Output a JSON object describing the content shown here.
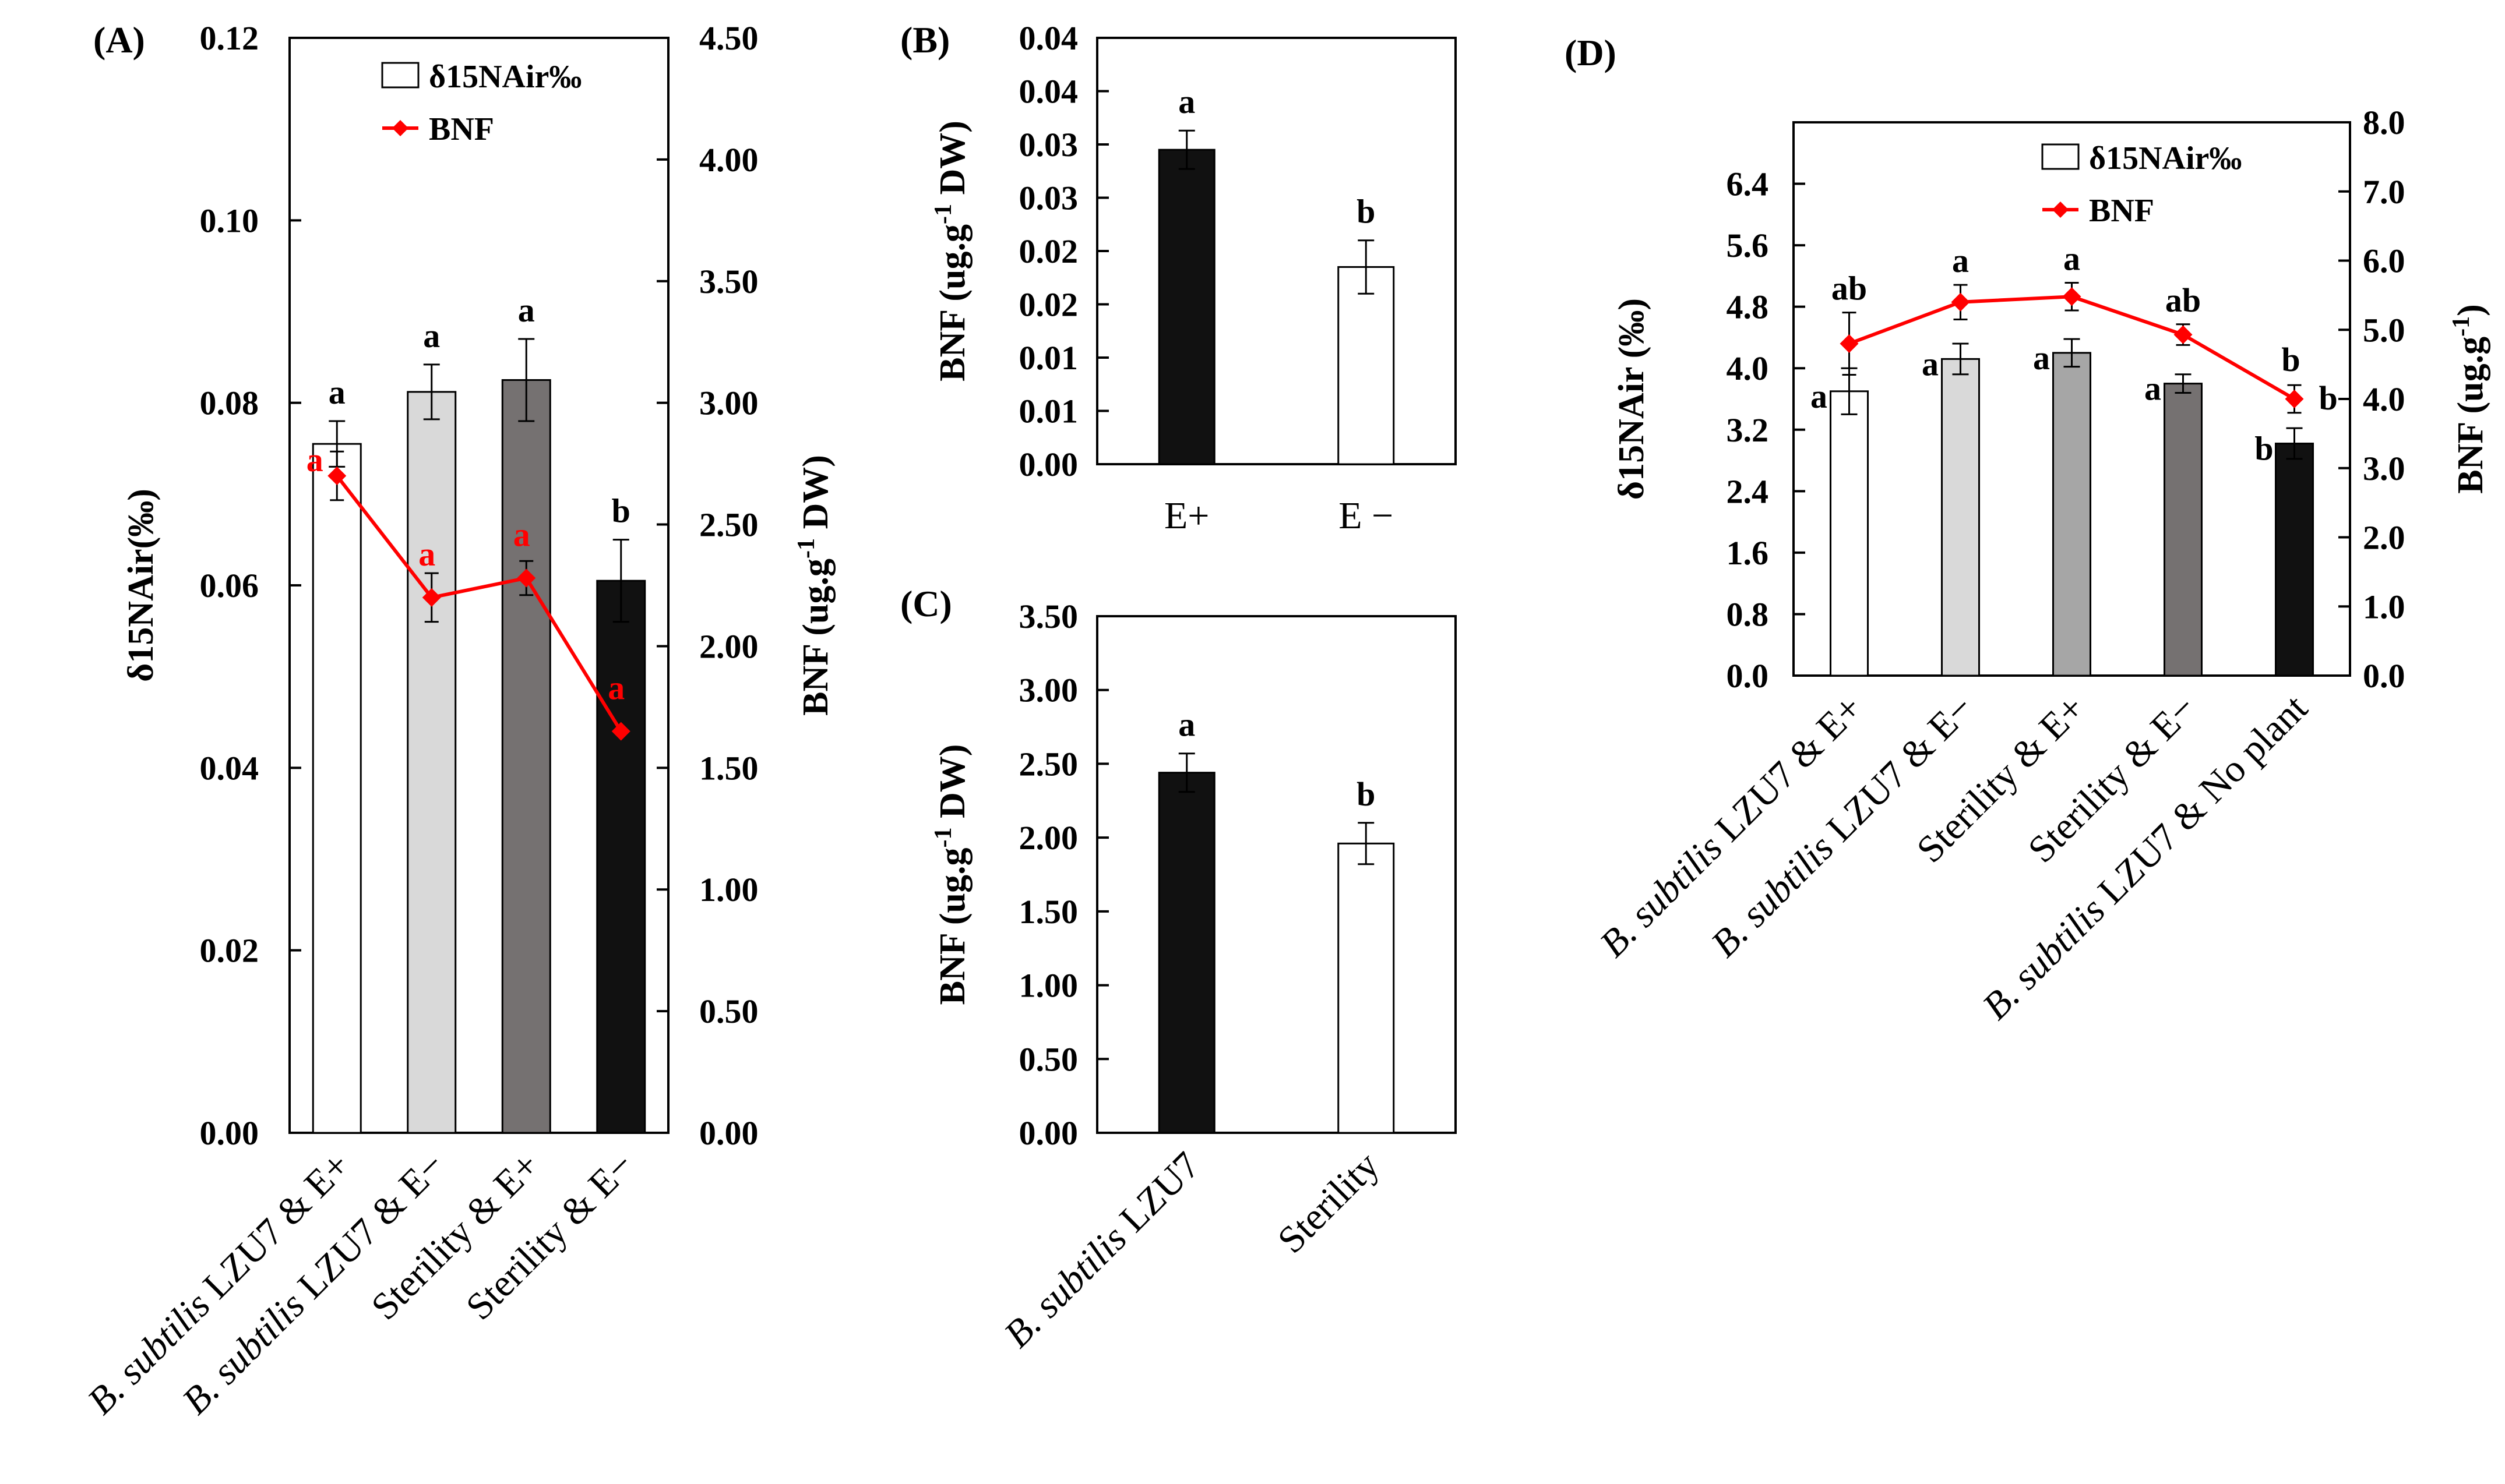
{
  "chart_data": [
    {
      "panel": "(A)",
      "type": "bar",
      "categories": [
        {
          "italic": "B. subtilis",
          "rest": " LZU7 & E+"
        },
        {
          "italic": "B. subtilis",
          "rest": " LZU7 & E−"
        },
        {
          "italic": "",
          "rest": "Sterility & E+"
        },
        {
          "italic": "",
          "rest": "Sterility & E−"
        }
      ],
      "bar_colors": [
        "#ffffff",
        "#d9d9d9",
        "#757171",
        "#111111"
      ],
      "series": [
        {
          "name": "δ15NAir‰",
          "kind": "bar",
          "axis": "left",
          "values": [
            0.0755,
            0.0812,
            0.0825,
            0.0605
          ],
          "errors": [
            0.0025,
            0.003,
            0.0045,
            0.0045
          ],
          "labels": [
            "a",
            "a",
            "a",
            "b"
          ]
        },
        {
          "name": "BNF",
          "kind": "line",
          "axis": "right",
          "color": "#ff0000",
          "values": [
            2.7,
            2.2,
            2.28,
            1.65
          ],
          "errors": [
            0.1,
            0.1,
            0.07,
            0
          ],
          "labels": [
            "a",
            "a",
            "a",
            "a"
          ]
        }
      ],
      "ylabel": "δ15NAir(‰)",
      "ylim": [
        0,
        0.12
      ],
      "yticks": [
        "0.00",
        "0.02",
        "0.04",
        "0.06",
        "0.08",
        "0.10",
        "0.12"
      ],
      "y2label": "BNF (ug.g-1 DW)",
      "y2label_main": "BNF (ug.g",
      "y2label_sup": "-1",
      "y2label_tail": " DW)",
      "y2lim": [
        0,
        4.5
      ],
      "y2ticks": [
        "0.00",
        "0.50",
        "1.00",
        "1.50",
        "2.00",
        "2.50",
        "3.00",
        "3.50",
        "4.00",
        "4.50"
      ],
      "legend": [
        {
          "label": "δ15NAir‰",
          "kind": "bar"
        },
        {
          "label": "BNF",
          "kind": "line"
        }
      ]
    },
    {
      "panel": "(B)",
      "type": "bar",
      "categories": [
        {
          "italic": "",
          "rest": "E+"
        },
        {
          "italic": "",
          "rest": "E −"
        }
      ],
      "bar_colors": [
        "#111111",
        "#ffffff"
      ],
      "series": [
        {
          "name": "BNF",
          "kind": "bar",
          "axis": "left",
          "values": [
            0.0295,
            0.0185
          ],
          "errors": [
            0.0018,
            0.0025
          ],
          "labels": [
            "a",
            "b"
          ]
        }
      ],
      "ylabel": "BNF (ug.g-1 DW)",
      "ylabel_main": "BNF (ug.g",
      "ylabel_sup": "-1",
      "ylabel_tail": " DW)",
      "ylim": [
        0,
        0.04
      ],
      "yticks": [
        "0.00",
        "0.01",
        "0.01",
        "0.02",
        "0.02",
        "0.03",
        "0.03",
        "0.04",
        "0.04"
      ]
    },
    {
      "panel": "(C)",
      "type": "bar",
      "categories": [
        {
          "italic": "B. subtilis",
          "rest": " LZU7"
        },
        {
          "italic": "",
          "rest": "Sterility"
        }
      ],
      "bar_colors": [
        "#111111",
        "#ffffff"
      ],
      "series": [
        {
          "name": "BNF",
          "kind": "bar",
          "axis": "left",
          "values": [
            2.44,
            1.96
          ],
          "errors": [
            0.13,
            0.14
          ],
          "labels": [
            "a",
            "b"
          ]
        }
      ],
      "ylabel": "BNF (ug.g-1 DW)",
      "ylabel_main": "BNF (ug.g",
      "ylabel_sup": "-1",
      "ylabel_tail": " DW)",
      "ylim": [
        0,
        3.5
      ],
      "yticks": [
        "0.00",
        "0.50",
        "1.00",
        "1.50",
        "2.00",
        "2.50",
        "3.00",
        "3.50"
      ]
    },
    {
      "panel": "(D)",
      "type": "bar",
      "categories": [
        {
          "italic": "B. subtilis",
          "rest": " LZU7 & E+"
        },
        {
          "italic": "B. subtilis",
          "rest": " LZU7 & E−"
        },
        {
          "italic": "",
          "rest": "Sterility & E+"
        },
        {
          "italic": "",
          "rest": "Sterility & E−"
        },
        {
          "italic": "B. subtilis",
          "rest": " LZU7 & No plant"
        }
      ],
      "bar_colors": [
        "#ffffff",
        "#d9d9d9",
        "#a6a6a6",
        "#757171",
        "#111111"
      ],
      "series": [
        {
          "name": "δ15NAir‰",
          "kind": "bar",
          "axis": "left",
          "values": [
            3.7,
            4.12,
            4.2,
            3.8,
            3.02
          ],
          "errors": [
            0.3,
            0.2,
            0.18,
            0.12,
            0.2
          ],
          "labels": [
            "a",
            "a",
            "a",
            "a",
            "b"
          ]
        },
        {
          "name": "BNF",
          "kind": "line",
          "axis": "right",
          "color": "#ff0000",
          "values": [
            4.8,
            5.4,
            5.48,
            4.93,
            4.0
          ],
          "errors": [
            0.45,
            0.25,
            0.2,
            0.15,
            0.2
          ],
          "labels": [
            "ab",
            "a",
            "a",
            "ab",
            "b"
          ]
        }
      ],
      "ylabel": "δ15NAir (‰)",
      "ylim": [
        0,
        7.2
      ],
      "yticks": [
        "0.0",
        "0.8",
        "1.6",
        "2.4",
        "3.2",
        "4.0",
        "4.8",
        "5.6",
        "6.4"
      ],
      "y2label": "BNF (ug.g-1)",
      "y2label_main": "BNF (ug.g",
      "y2label_sup": "-1",
      "y2label_tail": ")",
      "y2lim": [
        0,
        8.0
      ],
      "y2ticks": [
        "0.0",
        "1.0",
        "2.0",
        "3.0",
        "4.0",
        "5.0",
        "6.0",
        "7.0",
        "8.0"
      ],
      "legend": [
        {
          "label": "δ15NAir‰",
          "kind": "bar"
        },
        {
          "label": "BNF",
          "kind": "line"
        }
      ]
    }
  ]
}
